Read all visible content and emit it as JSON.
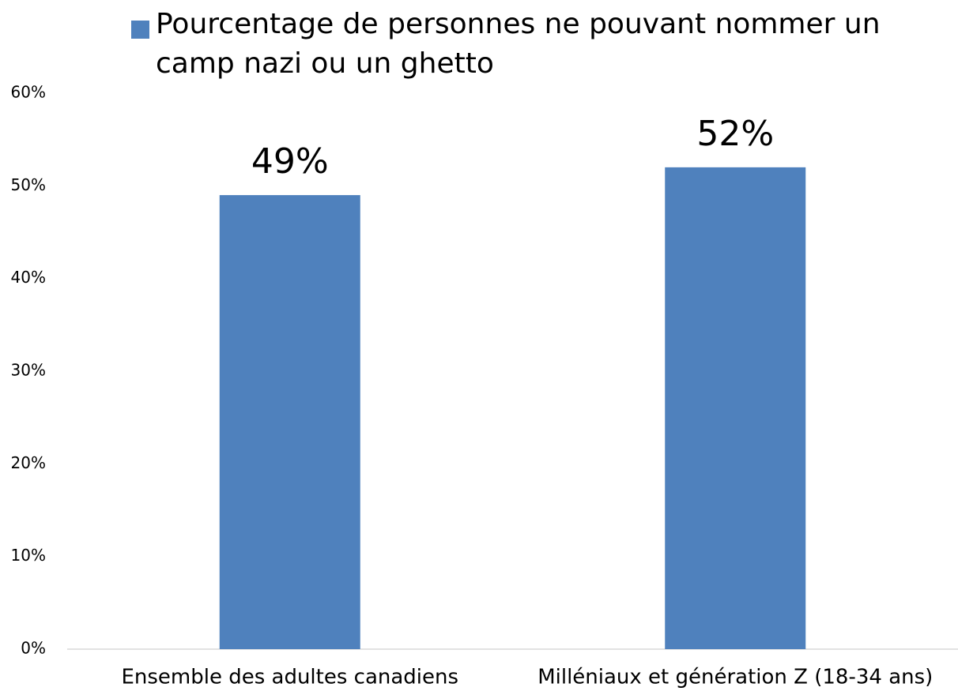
{
  "chart_data": {
    "type": "bar",
    "categories": [
      "Ensemble des adultes canadiens",
      "Milléniaux et génération Z (18-34 ans)"
    ],
    "series": [
      {
        "name": "Pourcentage de personnes ne pouvant nommer un camp nazi ou un ghetto",
        "color": "#4f81bd",
        "values": [
          49,
          52
        ],
        "value_labels": [
          "49%",
          "52%"
        ]
      }
    ],
    "ylim": [
      0,
      60
    ],
    "yticks": [
      {
        "value": 0,
        "label": "0%"
      },
      {
        "value": 10,
        "label": "10%"
      },
      {
        "value": 20,
        "label": "20%"
      },
      {
        "value": 30,
        "label": "30%"
      },
      {
        "value": 40,
        "label": "40%"
      },
      {
        "value": 50,
        "label": "50%"
      },
      {
        "value": 60,
        "label": "60%"
      }
    ],
    "grid": false,
    "legend": "top"
  }
}
